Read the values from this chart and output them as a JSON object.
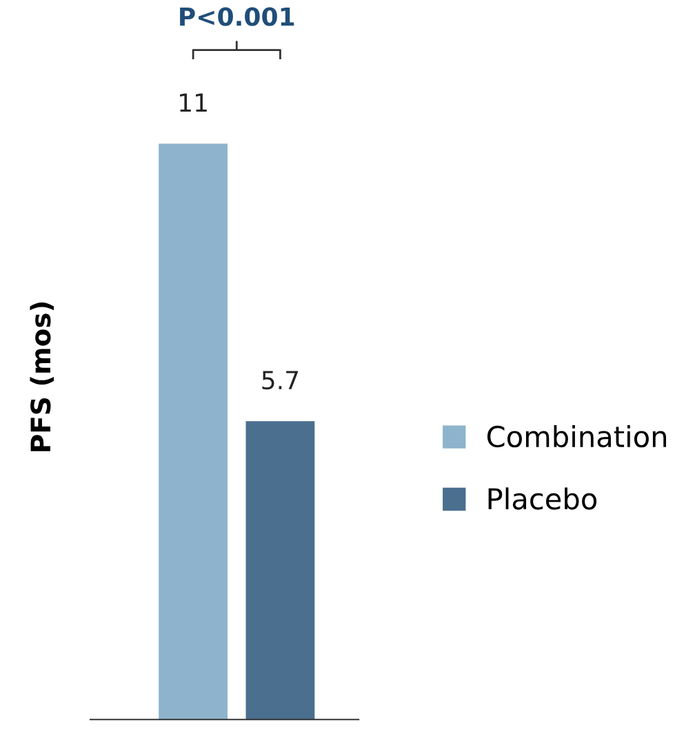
{
  "chart_data": {
    "type": "bar",
    "ylabel": "PFS (mos)",
    "categories": [
      null
    ],
    "series": [
      {
        "name": "Combination",
        "color": "#8db4cc",
        "values": [
          11
        ]
      },
      {
        "name": "Placebo",
        "color": "#4a6f8f",
        "values": [
          5.7
        ]
      }
    ],
    "data_labels": true,
    "legend": "right",
    "grid": false,
    "annotations": [
      "P<0.001"
    ]
  }
}
